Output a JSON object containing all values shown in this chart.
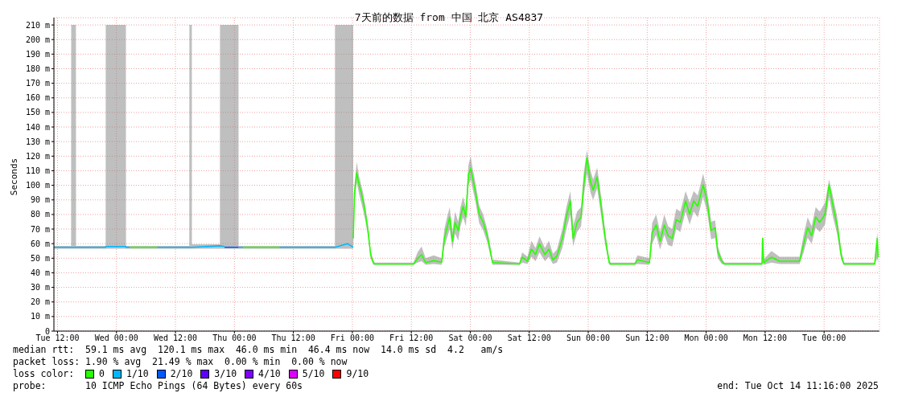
{
  "chart_data": {
    "type": "line",
    "title": "7天前的数据 from 中国 北京 AS4837",
    "ylabel": "Seconds",
    "legend_title": "loss color:",
    "legend": "bottom",
    "grid": true,
    "xlim": [
      "2025-10-07T11:16",
      "2025-10-14T11:16"
    ],
    "xticks": [
      {
        "value": "2025-10-07T12:00",
        "label": "Tue 12:00"
      },
      {
        "value": "2025-10-08T00:00",
        "label": "Wed 00:00"
      },
      {
        "value": "2025-10-08T12:00",
        "label": "Wed 12:00"
      },
      {
        "value": "2025-10-09T00:00",
        "label": "Thu 00:00"
      },
      {
        "value": "2025-10-09T12:00",
        "label": "Thu 12:00"
      },
      {
        "value": "2025-10-10T00:00",
        "label": "Fri 00:00"
      },
      {
        "value": "2025-10-10T12:00",
        "label": "Fri 12:00"
      },
      {
        "value": "2025-10-11T00:00",
        "label": "Sat 00:00"
      },
      {
        "value": "2025-10-11T12:00",
        "label": "Sat 12:00"
      },
      {
        "value": "2025-10-12T00:00",
        "label": "Sun 00:00"
      },
      {
        "value": "2025-10-12T12:00",
        "label": "Sun 12:00"
      },
      {
        "value": "2025-10-13T00:00",
        "label": "Mon 00:00"
      },
      {
        "value": "2025-10-13T12:00",
        "label": "Mon 12:00"
      },
      {
        "value": "2025-10-14T00:00",
        "label": "Tue 00:00"
      }
    ],
    "ylim": [
      0,
      215
    ],
    "yticks": [
      0,
      {
        "value": 10,
        "label": "10 m"
      },
      {
        "value": 20,
        "label": "20 m"
      },
      {
        "value": 30,
        "label": "30 m"
      },
      {
        "value": 40,
        "label": "40 m"
      },
      {
        "value": 50,
        "label": "50 m"
      },
      {
        "value": 60,
        "label": "60 m"
      },
      {
        "value": 70,
        "label": "70 m"
      },
      {
        "value": 80,
        "label": "80 m"
      },
      {
        "value": 90,
        "label": "90 m"
      },
      {
        "value": 100,
        "label": "100 m"
      },
      {
        "value": 110,
        "label": "110 m"
      },
      {
        "value": 120,
        "label": "120 m"
      },
      {
        "value": 130,
        "label": "130 m"
      },
      {
        "value": 140,
        "label": "140 m"
      },
      {
        "value": 150,
        "label": "150 m"
      },
      {
        "value": 160,
        "label": "160 m"
      },
      {
        "value": 170,
        "label": "170 m"
      },
      {
        "value": 180,
        "label": "180 m"
      },
      {
        "value": 190,
        "label": "190 m"
      },
      {
        "value": 200,
        "label": "200 m"
      },
      {
        "value": 210,
        "label": "210 m"
      }
    ],
    "annotations": [
      "median rtt:  59.1 ms avg  120.1 ms max  46.0 ms min  46.4 ms now  14.0 ms sd  4.2   am/s",
      "packet loss: 1.90 % avg  21.49 % max  0.00 % min  0.00 % now",
      "probe:       10 ICMP Echo Pings (64 Bytes) every 60s",
      "end: Tue Oct 14 11:16:00 2025"
    ],
    "series": [
      {
        "name": "0",
        "color": "#26ff00",
        "x": [
          "2025-10-07T11:16",
          "2025-10-07T14:46",
          "2025-10-07T14:47",
          "2025-10-07T15:45",
          "2025-10-07T15:46",
          "2025-10-07T21:48",
          "2025-10-07T21:49",
          "2025-10-08T01:55",
          "2025-10-08T01:56",
          "2025-10-08T02:45",
          "2025-10-08T08:17",
          "2025-10-08T08:18",
          "2025-10-08T14:49",
          "2025-10-08T14:50",
          "2025-10-08T15:20",
          "2025-10-08T15:21",
          "2025-10-08T21:03",
          "2025-10-08T21:04",
          "2025-10-09T00:50",
          "2025-10-09T00:51",
          "2025-10-09T01:49",
          "2025-10-09T09:09",
          "2025-10-09T09:10",
          "2025-10-09T20:27",
          "2025-10-09T20:28",
          "2025-10-10T00:10",
          "2025-10-10T00:11",
          "2025-10-10T00:26",
          "2025-10-10T00:53",
          "2025-10-10T01:22",
          "2025-10-10T01:49",
          "2025-10-10T02:11",
          "2025-10-10T02:38",
          "2025-10-10T03:11",
          "2025-10-10T03:43",
          "2025-10-10T04:16",
          "2025-10-10T04:32",
          "2025-10-10T12:27",
          "2025-10-10T13:16",
          "2025-10-10T14:05",
          "2025-10-10T14:55",
          "2025-10-10T16:33",
          "2025-10-10T18:11",
          "2025-10-10T18:43",
          "2025-10-10T19:16",
          "2025-10-10T19:49",
          "2025-10-10T20:22",
          "2025-10-10T20:54",
          "2025-10-10T21:33",
          "2025-10-10T22:00",
          "2025-10-10T22:32",
          "2025-10-10T23:06",
          "2025-10-10T23:38",
          "2025-10-11T00:05",
          "2025-10-11T00:27",
          "2025-10-11T00:59",
          "2025-10-11T01:49",
          "2025-10-11T02:38",
          "2025-10-11T03:27",
          "2025-10-11T04:00",
          "2025-10-11T04:32",
          "2025-10-11T10:00",
          "2025-10-11T10:33",
          "2025-10-11T11:38",
          "2025-10-11T12:27",
          "2025-10-11T13:16",
          "2025-10-11T14:05",
          "2025-10-11T15:11",
          "2025-10-11T16:00",
          "2025-10-11T16:49",
          "2025-10-11T17:38",
          "2025-10-11T18:44",
          "2025-10-11T19:33",
          "2025-10-11T20:22",
          "2025-10-11T20:55",
          "2025-10-11T21:44",
          "2025-10-11T22:33",
          "2025-10-11T23:05",
          "2025-10-11T23:44",
          "2025-10-12T00:28",
          "2025-10-12T01:00",
          "2025-10-12T01:49",
          "2025-10-12T02:38",
          "2025-10-12T03:28",
          "2025-10-12T04:16",
          "2025-10-12T04:33",
          "2025-10-12T09:28",
          "2025-10-12T10:00",
          "2025-10-12T12:28",
          "2025-10-12T13:00",
          "2025-10-12T13:49",
          "2025-10-12T14:38",
          "2025-10-12T15:28",
          "2025-10-12T16:16",
          "2025-10-12T17:05",
          "2025-10-12T17:55",
          "2025-10-12T18:44",
          "2025-10-12T19:49",
          "2025-10-12T20:38",
          "2025-10-12T21:28",
          "2025-10-12T22:17",
          "2025-10-12T23:23",
          "2025-10-13T00:11",
          "2025-10-13T01:01",
          "2025-10-13T01:50",
          "2025-10-13T02:22",
          "2025-10-13T03:11",
          "2025-10-13T03:44",
          "2025-10-13T11:22",
          "2025-10-13T11:29",
          "2025-10-13T11:42",
          "2025-10-13T13:17",
          "2025-10-13T14:56",
          "2025-10-13T19:01",
          "2025-10-13T19:50",
          "2025-10-13T20:39",
          "2025-10-13T21:28",
          "2025-10-13T22:17",
          "2025-10-13T23:07",
          "2025-10-14T00:11",
          "2025-10-14T01:01",
          "2025-10-14T01:49",
          "2025-10-14T02:38",
          "2025-10-14T03:28",
          "2025-10-14T04:01",
          "2025-10-14T10:17",
          "2025-10-14T10:49",
          "2025-10-14T11:00"
        ],
        "values": [
          null,
          null,
          null,
          null,
          null,
          null,
          null,
          null,
          null,
          57.5,
          57.5,
          null,
          null,
          null,
          null,
          null,
          null,
          null,
          null,
          null,
          57.5,
          57.5,
          null,
          null,
          null,
          null,
          63.6,
          94.8,
          108.6,
          100.3,
          94.8,
          89.3,
          81,
          69,
          52.5,
          47,
          46,
          46,
          49.8,
          52.5,
          47,
          48.3,
          47.3,
          63.6,
          70.9,
          78.3,
          61.7,
          74.6,
          69,
          78.3,
          85.6,
          78.3,
          107.7,
          111.4,
          105.8,
          96.6,
          80.1,
          74.6,
          65.4,
          56.2,
          47,
          46,
          50.7,
          48,
          56.2,
          52.5,
          59.9,
          52.5,
          56.2,
          48.8,
          51.6,
          63.6,
          78.3,
          89.3,
          63.6,
          74.6,
          78.3,
          100.3,
          118.7,
          102.2,
          96.6,
          105.8,
          85.6,
          63.6,
          47,
          46,
          46,
          48.9,
          47,
          67.3,
          72.8,
          61.7,
          72.8,
          65.4,
          63.6,
          76.4,
          74.6,
          89.3,
          80.1,
          89.3,
          85.6,
          100.3,
          89.3,
          69,
          70.9,
          54.4,
          48,
          46,
          46,
          63.6,
          47,
          50.7,
          48,
          48,
          59.9,
          70.9,
          65.4,
          78.3,
          74.6,
          80.1,
          100.3,
          85.6,
          72.8,
          52.5,
          46,
          46,
          63.6,
          50.7
        ],
        "lower": [
          56.5,
          56.5,
          56.5,
          56.5,
          56.5,
          56.5,
          56.5,
          56.5,
          56.5,
          56.5,
          56.5,
          56.5,
          56.5,
          56.5,
          56.5,
          56.5,
          56.5,
          56.5,
          56.5,
          56.5,
          56.5,
          56.5,
          56.5,
          56.5,
          56.5,
          56.5,
          57,
          88,
          102,
          94,
          88,
          83,
          76,
          65,
          50,
          45.5,
          45.5,
          45.5,
          47,
          48,
          45.5,
          46,
          45.5,
          58,
          64,
          70,
          56,
          67,
          62,
          72,
          78,
          72,
          100,
          104,
          98,
          90,
          74,
          69,
          61,
          53,
          45.5,
          45.5,
          47,
          46,
          51,
          48,
          54,
          48,
          51,
          46,
          47,
          57,
          70,
          80,
          58,
          68,
          72,
          92,
          108,
          95,
          90,
          98,
          79,
          59,
          45.5,
          45.5,
          45.5,
          46,
          45.5,
          60,
          66,
          56,
          66,
          59,
          58,
          70,
          68,
          82,
          73,
          82,
          78,
          92,
          82,
          63,
          64,
          50,
          46,
          45.5,
          45.5,
          48,
          45.5,
          47,
          46,
          46,
          54,
          64,
          60,
          71,
          68,
          73,
          92,
          78,
          67,
          49,
          45.5,
          45.5,
          50,
          46
        ],
        "upper": [
          58.5,
          58.5,
          210,
          210,
          58.5,
          58.5,
          210,
          210,
          58.5,
          58.5,
          58.5,
          58.5,
          58.5,
          210,
          210,
          59.5,
          59.5,
          210,
          210,
          58.5,
          58.5,
          58.5,
          58.5,
          58.5,
          210,
          210,
          68,
          100,
          116,
          106,
          100,
          95,
          86,
          73,
          55,
          48.5,
          47,
          47,
          54,
          58,
          50,
          52,
          50,
          70,
          78,
          85,
          68,
          82,
          75,
          85,
          92,
          85,
          114,
          120,
          112,
          103,
          86,
          80,
          70,
          60,
          49,
          47,
          54,
          51,
          62,
          57,
          65,
          57,
          62,
          53,
          56,
          70,
          85,
          96,
          72,
          82,
          85,
          108,
          124,
          110,
          104,
          112,
          92,
          68,
          49,
          47,
          47,
          52,
          50,
          74,
          80,
          68,
          80,
          72,
          70,
          84,
          82,
          96,
          88,
          96,
          93,
          108,
          96,
          75,
          76,
          58,
          50,
          47,
          47,
          66,
          49,
          55,
          51,
          51,
          66,
          78,
          72,
          85,
          82,
          88,
          104,
          92,
          79,
          56,
          47,
          47,
          68,
          55
        ]
      },
      {
        "name": "1/10",
        "color": "#00b8ff",
        "x": [
          "2025-10-07T11:16",
          "2025-10-07T14:46",
          "2025-10-07T14:47",
          "2025-10-07T15:45",
          "2025-10-07T15:46",
          "2025-10-07T21:48",
          "2025-10-07T21:49",
          "2025-10-08T01:55",
          "2025-10-08T01:56",
          "2025-10-08T02:44",
          "2025-10-08T02:45",
          "2025-10-08T08:17",
          "2025-10-08T08:18",
          "2025-10-08T14:49",
          "2025-10-08T14:50",
          "2025-10-08T15:20",
          "2025-10-08T15:21",
          "2025-10-08T21:03",
          "2025-10-08T21:04",
          "2025-10-08T21:59",
          "2025-10-08T22:00",
          "2025-10-09T00:50",
          "2025-10-09T00:51",
          "2025-10-09T01:48",
          "2025-10-09T01:49",
          "2025-10-09T09:09",
          "2025-10-09T09:10",
          "2025-10-09T20:27",
          "2025-10-09T20:28",
          "2025-10-09T23:00",
          "2025-10-10T00:10"
        ],
        "values": [
          57.5,
          57.5,
          57.5,
          57.5,
          57.5,
          57.5,
          58,
          58,
          57.5,
          57.5,
          null,
          null,
          57.5,
          57.5,
          57.5,
          57.5,
          57.5,
          58.5,
          58.5,
          58,
          null,
          null,
          57.5,
          57.5,
          null,
          null,
          57.5,
          57.5,
          57.5,
          60,
          57.5
        ]
      },
      {
        "name": "2/10",
        "color": "#0059ff",
        "x": [
          "2025-10-08T22:00",
          "2025-10-09T00:50"
        ],
        "values": [
          57.5,
          57.5
        ]
      },
      {
        "name": "3/10",
        "color": "#5e00ff"
      },
      {
        "name": "4/10",
        "color": "#7e00ff"
      },
      {
        "name": "5/10",
        "color": "#dd00ff"
      },
      {
        "name": "9/10",
        "color": "#ff0000"
      }
    ]
  }
}
